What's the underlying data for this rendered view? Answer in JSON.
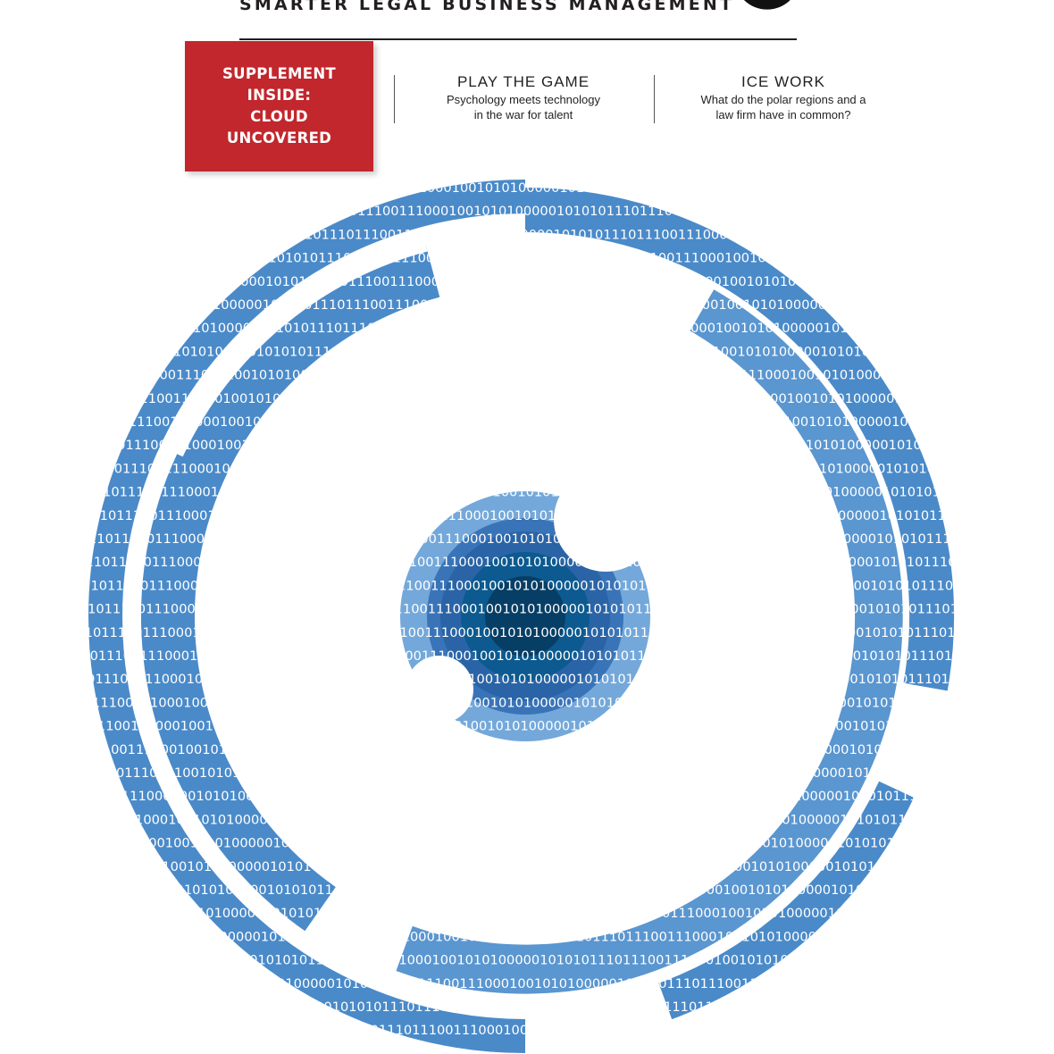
{
  "masthead": {
    "tagline": "SMARTER LEGAL BUSINESS MANAGEMENT"
  },
  "supplement": {
    "lines": [
      "SUPPLEMENT",
      "INSIDE:",
      "CLOUD",
      "UNCOVERED"
    ],
    "color": "#c1272d"
  },
  "teasers": [
    {
      "title": "PLAY THE GAME",
      "text": "Psychology meets technology in the war for talent"
    },
    {
      "title": "ICE WORK",
      "text": "What do the polar regions and a law firm have in common?"
    }
  ],
  "artwork": {
    "binary_text": "10101011101110011100010010101000001010101110111001110001001010100000",
    "palette": [
      "#4a8ac9",
      "#5a96d0",
      "#74a8da",
      "#98c1e8",
      "#bdd8f2",
      "#d8e8f7",
      "#3a74b8",
      "#2a64a6",
      "#0c5a8f",
      "#073e66"
    ]
  }
}
